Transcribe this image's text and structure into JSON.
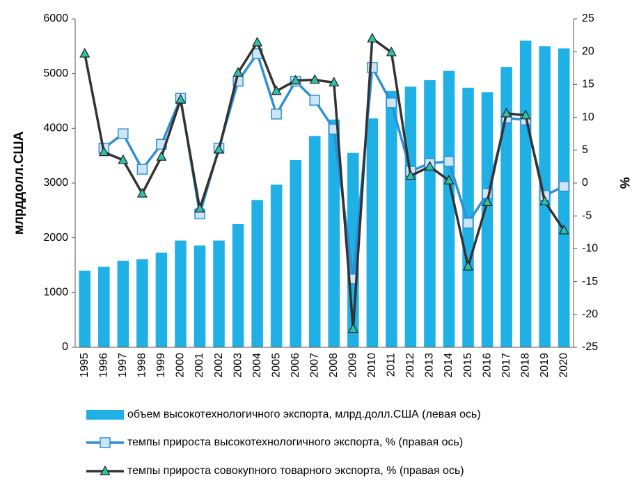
{
  "chart_data": {
    "type": "bar",
    "categories": [
      "1995",
      "1996",
      "1997",
      "1998",
      "1999",
      "2000",
      "2001",
      "2002",
      "2003",
      "2004",
      "2005",
      "2006",
      "2007",
      "2008",
      "2009",
      "2010",
      "2011",
      "2012",
      "2013",
      "2014",
      "2015",
      "2016",
      "2017",
      "2018",
      "2019",
      "2020"
    ],
    "series": [
      {
        "name": "объем высокотехнологичного экспорта, млрд.долл.США (левая ось)",
        "type": "bar",
        "color": "#1fb0e6",
        "values": [
          1400,
          1470,
          1580,
          1610,
          1730,
          1950,
          1860,
          1950,
          2250,
          2690,
          2970,
          3420,
          3860,
          4160,
          3550,
          4180,
          4680,
          4760,
          4880,
          5050,
          4740,
          4660,
          5120,
          5600,
          5500,
          5460
        ]
      },
      {
        "name": "темпы прироста высокотехнологичного экспорта, % (правая ось)",
        "type": "line",
        "marker": "square",
        "axis": "y2",
        "color": "#2e8fd6",
        "values": [
          null,
          5.3,
          7.5,
          2.1,
          5.9,
          12.9,
          -4.7,
          5.3,
          15.5,
          19.7,
          10.5,
          15.5,
          12.6,
          8.2,
          -14.6,
          17.6,
          12.2,
          1.8,
          3.0,
          3.3,
          -6.1,
          -1.6,
          9.9,
          9.6,
          -1.9,
          -0.5
        ]
      },
      {
        "name": "темпы прироста совокупного товарного экспорта, % (правая ось)",
        "type": "line",
        "marker": "triangle",
        "axis": "y2",
        "color": "#333333",
        "values": [
          19.7,
          4.7,
          3.5,
          -1.6,
          4.0,
          12.7,
          -3.9,
          5.1,
          16.8,
          21.4,
          14.0,
          15.6,
          15.7,
          15.3,
          -22.2,
          22.0,
          19.9,
          1.1,
          2.5,
          0.4,
          -12.7,
          -2.9,
          10.6,
          10.3,
          -2.8,
          -7.2
        ]
      }
    ],
    "ylabel": "млрддолл.США",
    "y2label": "%",
    "ylim": [
      0,
      6000
    ],
    "yticks": [
      0,
      1000,
      2000,
      3000,
      4000,
      5000,
      6000
    ],
    "y2lim": [
      -25,
      25
    ],
    "y2ticks": [
      -25,
      -20,
      -15,
      -10,
      -5,
      0,
      5,
      10,
      15,
      20,
      25
    ]
  }
}
